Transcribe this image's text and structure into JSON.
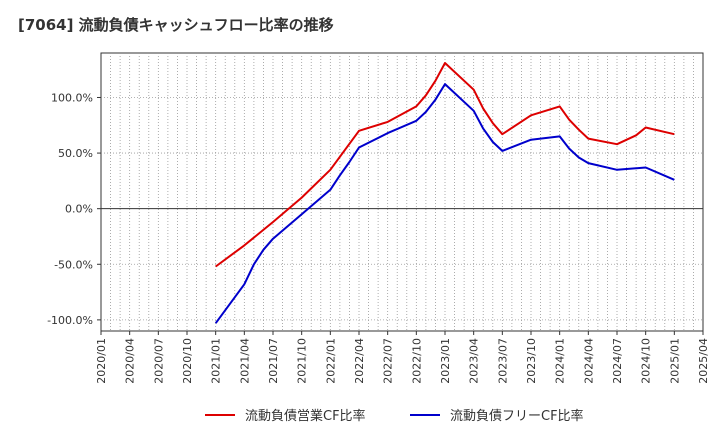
{
  "chart_data": {
    "type": "line",
    "title": "[7064]  流動負債キャッシュフロー比率の推移",
    "xlabel": "",
    "ylabel": "",
    "x_ticks": [
      "2020/01",
      "2020/04",
      "2020/07",
      "2020/10",
      "2021/01",
      "2021/04",
      "2021/07",
      "2021/10",
      "2022/01",
      "2022/04",
      "2022/07",
      "2022/10",
      "2023/01",
      "2023/04",
      "2023/07",
      "2023/10",
      "2024/01",
      "2024/04",
      "2024/07",
      "2024/10",
      "2025/01",
      "2025/04"
    ],
    "y_ticks": [
      "100.0%",
      "50.0%",
      "0.0%",
      "-50.0%",
      "-100.0%"
    ],
    "xlim": [
      "2020/01",
      "2025/04"
    ],
    "ylim": [
      -110,
      140
    ],
    "grid": true,
    "legend_position": "bottom",
    "series": [
      {
        "name": "流動負債営業CF比率",
        "color": "#dd0000",
        "points": [
          [
            "2021/01",
            -52
          ],
          [
            "2021/04",
            -33
          ],
          [
            "2021/07",
            -12
          ],
          [
            "2021/10",
            10
          ],
          [
            "2022/01",
            35
          ],
          [
            "2022/04",
            70
          ],
          [
            "2022/07",
            78
          ],
          [
            "2022/10",
            92
          ],
          [
            "2022/11",
            102
          ],
          [
            "2022/12",
            115
          ],
          [
            "2023/01",
            131
          ],
          [
            "2023/04",
            107
          ],
          [
            "2023/05",
            90
          ],
          [
            "2023/06",
            77
          ],
          [
            "2023/07",
            67
          ],
          [
            "2023/10",
            84
          ],
          [
            "2024/01",
            92
          ],
          [
            "2024/02",
            80
          ],
          [
            "2024/03",
            71
          ],
          [
            "2024/04",
            63
          ],
          [
            "2024/07",
            58
          ],
          [
            "2024/09",
            66
          ],
          [
            "2024/10",
            73
          ],
          [
            "2025/01",
            67
          ]
        ]
      },
      {
        "name": "流動負債フリーCF比率",
        "color": "#0000cc",
        "points": [
          [
            "2021/01",
            -103
          ],
          [
            "2021/04",
            -68
          ],
          [
            "2021/05",
            -50
          ],
          [
            "2021/06",
            -37
          ],
          [
            "2021/07",
            -27
          ],
          [
            "2021/10",
            -5
          ],
          [
            "2022/01",
            17
          ],
          [
            "2022/02",
            30
          ],
          [
            "2022/03",
            42
          ],
          [
            "2022/04",
            55
          ],
          [
            "2022/07",
            68
          ],
          [
            "2022/10",
            79
          ],
          [
            "2022/11",
            87
          ],
          [
            "2022/12",
            98
          ],
          [
            "2023/01",
            112
          ],
          [
            "2023/04",
            88
          ],
          [
            "2023/05",
            72
          ],
          [
            "2023/06",
            60
          ],
          [
            "2023/07",
            52
          ],
          [
            "2023/10",
            62
          ],
          [
            "2024/01",
            65
          ],
          [
            "2024/02",
            54
          ],
          [
            "2024/03",
            46
          ],
          [
            "2024/04",
            41
          ],
          [
            "2024/07",
            35
          ],
          [
            "2024/10",
            37
          ],
          [
            "2025/01",
            26
          ]
        ]
      }
    ]
  }
}
